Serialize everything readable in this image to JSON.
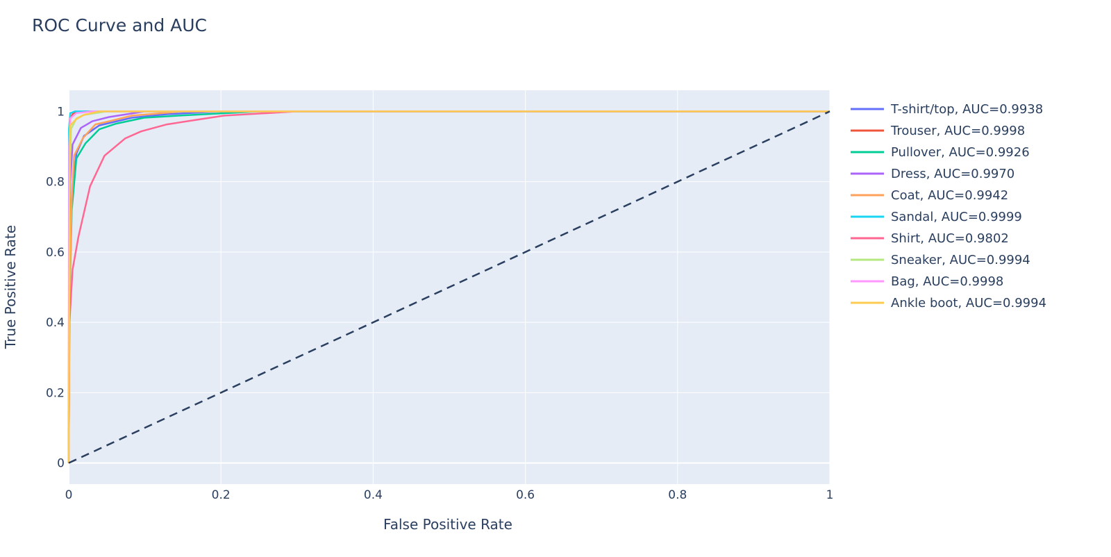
{
  "chart_data": {
    "type": "line",
    "title": "ROC Curve and AUC",
    "xlabel": "False Positive Rate",
    "ylabel": "True Positive Rate",
    "xlim": [
      0,
      1
    ],
    "ylim": [
      -0.06,
      1.06
    ],
    "xticks": [
      "0",
      "0.2",
      "0.4",
      "0.6",
      "0.8",
      "1"
    ],
    "yticks": [
      "0",
      "0.2",
      "0.4",
      "0.6",
      "0.8",
      "1"
    ],
    "grid": true,
    "legend_position": "right",
    "background": "#e5ecf6",
    "baseline": {
      "x": [
        0,
        1
      ],
      "y": [
        0,
        1
      ],
      "color": "#2a3f5f",
      "dash": true
    },
    "series": [
      {
        "name": "T-shirt/top, AUC=0.9938",
        "color": "#636efa",
        "x": [
          0,
          0.001,
          0.004,
          0.01,
          0.02,
          0.04,
          0.083,
          0.13,
          0.2,
          1
        ],
        "y": [
          0,
          0.5,
          0.75,
          0.88,
          0.93,
          0.96,
          0.982,
          0.992,
          1,
          1
        ]
      },
      {
        "name": "Trouser, AUC=0.9998",
        "color": "#EF553B",
        "x": [
          0,
          0.0005,
          0.002,
          0.006,
          0.02,
          1
        ],
        "y": [
          0,
          0.9,
          0.98,
          0.995,
          1,
          1
        ]
      },
      {
        "name": "Pullover, AUC=0.9926",
        "color": "#00cc96",
        "x": [
          0,
          0.001,
          0.004,
          0.01,
          0.022,
          0.04,
          0.062,
          0.099,
          0.144,
          0.25,
          1
        ],
        "y": [
          0,
          0.45,
          0.72,
          0.866,
          0.909,
          0.949,
          0.965,
          0.982,
          0.988,
          1,
          1
        ]
      },
      {
        "name": "Dress, AUC=0.9970",
        "color": "#ab63fa",
        "x": [
          0,
          0.001,
          0.002,
          0.005,
          0.016,
          0.031,
          0.053,
          0.1,
          1
        ],
        "y": [
          0,
          0.6,
          0.8,
          0.906,
          0.953,
          0.972,
          0.984,
          1,
          1
        ]
      },
      {
        "name": "Coat, AUC=0.9942",
        "color": "#FFA15A",
        "x": [
          0,
          0.001,
          0.004,
          0.007,
          0.019,
          0.035,
          0.053,
          0.083,
          0.15,
          1
        ],
        "y": [
          0,
          0.45,
          0.75,
          0.874,
          0.925,
          0.963,
          0.972,
          0.988,
          1,
          1
        ]
      },
      {
        "name": "Sandal, AUC=0.9999",
        "color": "#19d3f3",
        "x": [
          0,
          0.0003,
          0.002,
          0.008,
          1
        ],
        "y": [
          0,
          0.95,
          0.995,
          1,
          1
        ]
      },
      {
        "name": "Shirt, AUC=0.9802",
        "color": "#FF6692",
        "x": [
          0,
          0.001,
          0.005,
          0.0128,
          0.028,
          0.047,
          0.074,
          0.095,
          0.129,
          0.162,
          0.204,
          0.3,
          1
        ],
        "y": [
          0,
          0.4,
          0.55,
          0.644,
          0.787,
          0.874,
          0.923,
          0.943,
          0.963,
          0.974,
          0.988,
          1,
          1
        ]
      },
      {
        "name": "Sneaker, AUC=0.9994",
        "color": "#B6E880",
        "x": [
          0,
          0.001,
          0.003,
          0.01,
          0.02,
          0.05,
          1
        ],
        "y": [
          0,
          0.8,
          0.95,
          0.98,
          0.99,
          1,
          1
        ]
      },
      {
        "name": "Bag, AUC=0.9998",
        "color": "#FF97FF",
        "x": [
          0,
          0.0005,
          0.002,
          0.01,
          0.03,
          1
        ],
        "y": [
          0,
          0.9,
          0.98,
          0.995,
          1,
          1
        ]
      },
      {
        "name": "Ankle boot, AUC=0.9994",
        "color": "#FECB52",
        "x": [
          0,
          0.001,
          0.002,
          0.01,
          0.02,
          0.04,
          1
        ],
        "y": [
          0,
          0.7,
          0.96,
          0.978,
          0.99,
          1,
          1
        ]
      }
    ]
  }
}
